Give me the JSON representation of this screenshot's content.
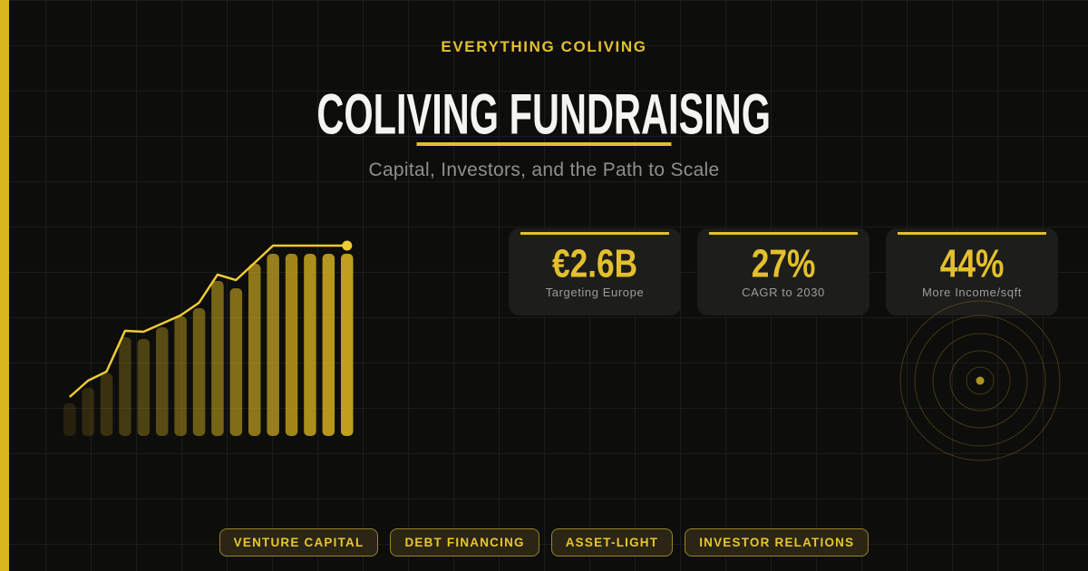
{
  "brand": {
    "eyebrow": "EVERYTHING COLIVING"
  },
  "header": {
    "title": "COLIVING FUNDRAISING",
    "subtitle": "Capital, Investors, and the Path to Scale"
  },
  "stats": [
    {
      "value": "€2.6B",
      "label": "Targeting Europe"
    },
    {
      "value": "27%",
      "label": "CAGR to 2030"
    },
    {
      "value": "44%",
      "label": "More Income/sqft"
    }
  ],
  "tags": [
    "VENTURE CAPITAL",
    "DEBT FINANCING",
    "ASSET-LIGHT",
    "INVESTOR RELATIONS"
  ],
  "colors": {
    "background": "#0D0D0C",
    "grid_line": "#1C1C1C",
    "accent": "#E3C02C",
    "accent_bright": "#F0CB33",
    "left_strip": "#D9B51F",
    "title_text": "#F4F4F2",
    "subtitle_text": "#8F8F8C",
    "card_background": "#1D1D1B",
    "card_label": "#9D9D97",
    "tag_background": "#2A2514",
    "tag_border": "#97832A",
    "tag_text": "#E8C62F",
    "radar_ring": "#C9A82C"
  },
  "chart_data": {
    "type": "bar",
    "title": "",
    "axes_labeled": false,
    "grid": false,
    "legend": false,
    "bar_count": 16,
    "bar_values": [
      36,
      53,
      69,
      109,
      107,
      120,
      132,
      141,
      171,
      163,
      190,
      201,
      201,
      201,
      201,
      201
    ],
    "line_overlay_values": [
      43,
      61,
      71,
      116,
      115,
      124,
      133,
      147,
      178,
      172,
      191,
      210,
      210,
      210,
      210,
      210
    ],
    "ylim": [
      0,
      231
    ],
    "units": "relative height (no axis ticks shown in image)",
    "bar_color": "#C9A81F",
    "bar_opacity_range": [
      0.13,
      0.95
    ],
    "line_color": "#F0CB33",
    "endpoint_dot": true
  },
  "decor": {
    "radar_rings": [
      15,
      33,
      52,
      72,
      88
    ]
  }
}
